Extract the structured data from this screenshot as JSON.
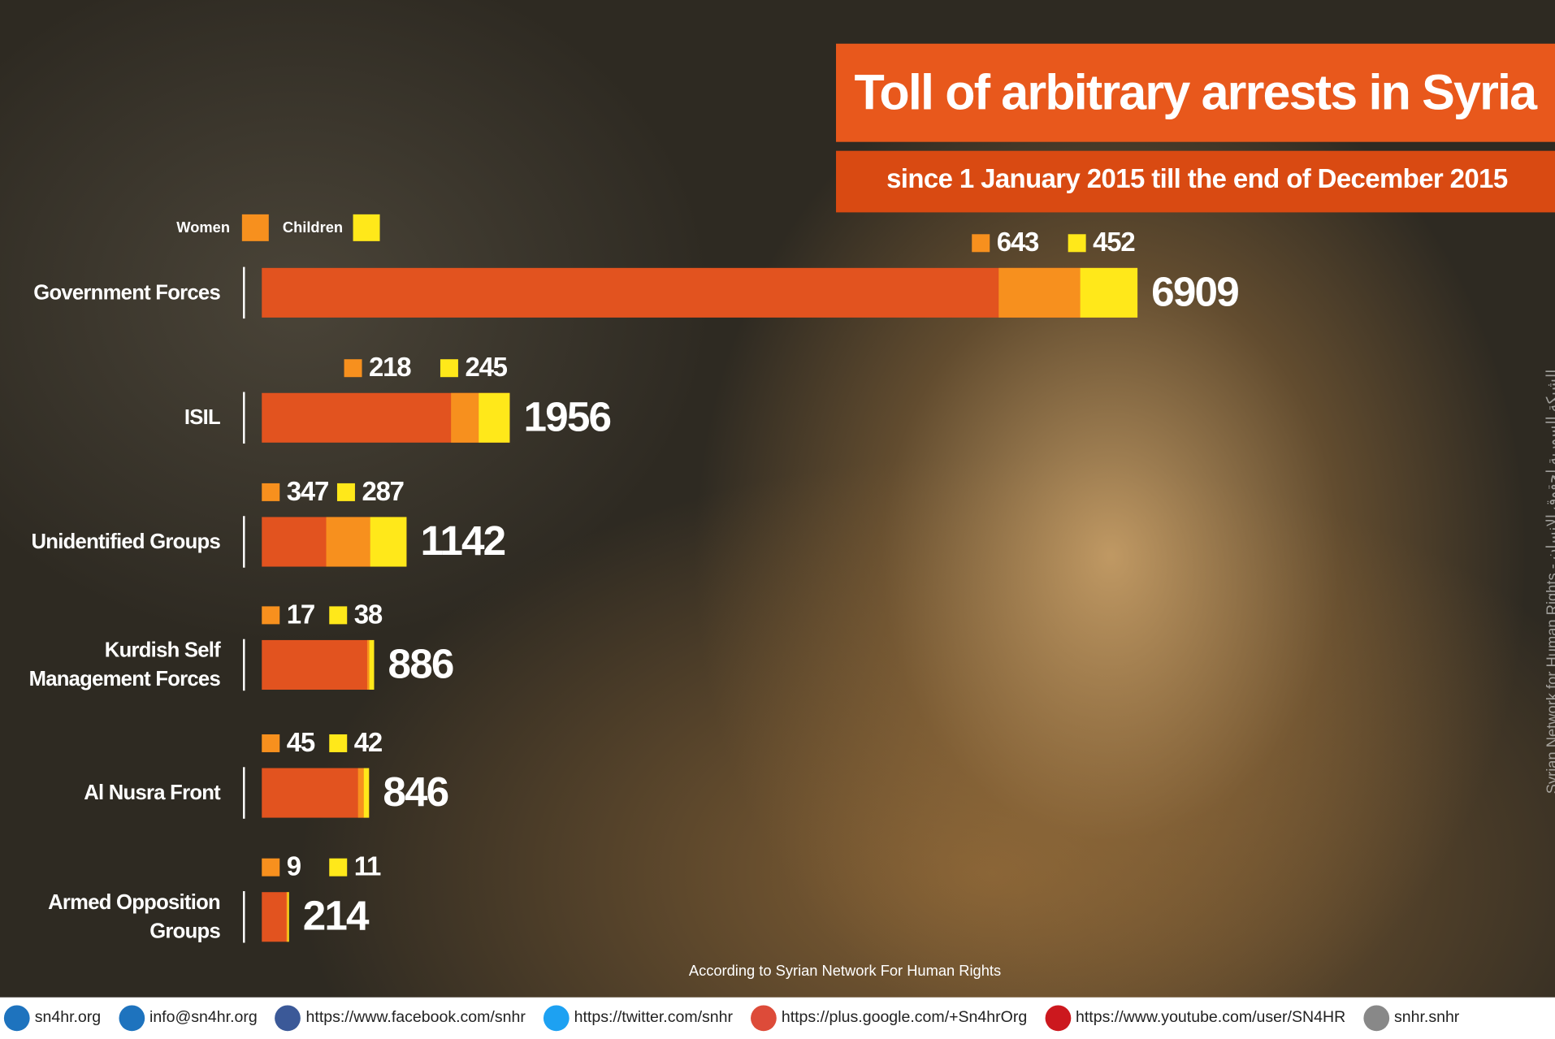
{
  "chart_data": {
    "type": "bar",
    "title": "Toll of arbitrary arrests in Syria",
    "subtitle": "since 1 January 2015 till the end of December 2015",
    "categories": [
      "Government Forces",
      "ISIL",
      "Unidentified Groups",
      "Kurdish Self Management Forces",
      "Al Nusra Front",
      "Armed Opposition Groups"
    ],
    "values": [
      6909,
      1956,
      1142,
      886,
      846,
      214
    ],
    "color": "#e2531f",
    "series": [
      {
        "name": "Women",
        "color": "#f7901e",
        "values": [
          643,
          218,
          347,
          17,
          45,
          9
        ]
      },
      {
        "name": "Children",
        "color": "#ffe81a",
        "values": [
          452,
          245,
          287,
          38,
          42,
          11
        ]
      }
    ],
    "source": "According to Syrian Network For Human Rights",
    "credit": "Syrian Network for Human Rights - الشبكة السورية لحقوق الإنسان"
  },
  "footer": [
    "sn4hr.org",
    "info@sn4hr.org",
    "https://www.facebook.com/snhr",
    "https://twitter.com/snhr",
    "https://plus.google.com/+Sn4hrOrg",
    "https://www.youtube.com/user/SN4HR",
    "snhr.snhr"
  ]
}
